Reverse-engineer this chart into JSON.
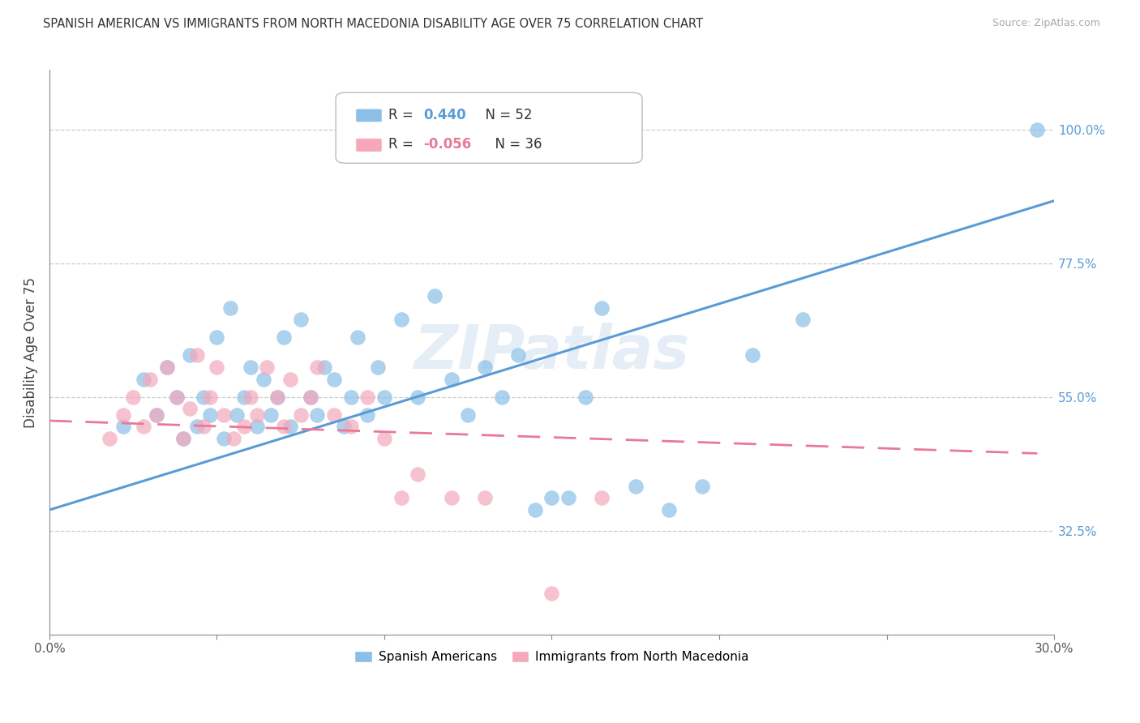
{
  "title": "SPANISH AMERICAN VS IMMIGRANTS FROM NORTH MACEDONIA DISABILITY AGE OVER 75 CORRELATION CHART",
  "source": "Source: ZipAtlas.com",
  "ylabel": "Disability Age Over 75",
  "right_yticks": [
    "100.0%",
    "77.5%",
    "55.0%",
    "32.5%"
  ],
  "right_ytick_vals": [
    1.0,
    0.775,
    0.55,
    0.325
  ],
  "xmin": 0.0,
  "xmax": 0.3,
  "ymin": 0.15,
  "ymax": 1.1,
  "blue_color": "#8BBFE8",
  "pink_color": "#F5A8BC",
  "blue_line_color": "#5B9BD5",
  "pink_line_color": "#E87A96",
  "watermark": "ZIPatlas",
  "legend_r1_label": "R = ",
  "legend_r1_val": "0.440",
  "legend_r1_n": "N = 52",
  "legend_r2_label": "R = ",
  "legend_r2_val": "-0.056",
  "legend_r2_n": "N = 36",
  "blue_scatter_x": [
    0.022,
    0.028,
    0.032,
    0.035,
    0.038,
    0.04,
    0.042,
    0.044,
    0.046,
    0.048,
    0.05,
    0.052,
    0.054,
    0.056,
    0.058,
    0.06,
    0.062,
    0.064,
    0.066,
    0.068,
    0.07,
    0.072,
    0.075,
    0.078,
    0.08,
    0.082,
    0.085,
    0.088,
    0.09,
    0.092,
    0.095,
    0.098,
    0.1,
    0.105,
    0.11,
    0.115,
    0.12,
    0.125,
    0.13,
    0.135,
    0.14,
    0.145,
    0.15,
    0.155,
    0.16,
    0.165,
    0.175,
    0.185,
    0.195,
    0.21,
    0.225,
    0.295
  ],
  "blue_scatter_y": [
    0.5,
    0.58,
    0.52,
    0.6,
    0.55,
    0.48,
    0.62,
    0.5,
    0.55,
    0.52,
    0.65,
    0.48,
    0.7,
    0.52,
    0.55,
    0.6,
    0.5,
    0.58,
    0.52,
    0.55,
    0.65,
    0.5,
    0.68,
    0.55,
    0.52,
    0.6,
    0.58,
    0.5,
    0.55,
    0.65,
    0.52,
    0.6,
    0.55,
    0.68,
    0.55,
    0.72,
    0.58,
    0.52,
    0.6,
    0.55,
    0.62,
    0.36,
    0.38,
    0.38,
    0.55,
    0.7,
    0.4,
    0.36,
    0.4,
    0.62,
    0.68,
    1.0
  ],
  "pink_scatter_x": [
    0.018,
    0.022,
    0.025,
    0.028,
    0.03,
    0.032,
    0.035,
    0.038,
    0.04,
    0.042,
    0.044,
    0.046,
    0.048,
    0.05,
    0.052,
    0.055,
    0.058,
    0.06,
    0.062,
    0.065,
    0.068,
    0.07,
    0.072,
    0.075,
    0.078,
    0.08,
    0.085,
    0.09,
    0.095,
    0.1,
    0.105,
    0.11,
    0.12,
    0.13,
    0.15,
    0.165
  ],
  "pink_scatter_y": [
    0.48,
    0.52,
    0.55,
    0.5,
    0.58,
    0.52,
    0.6,
    0.55,
    0.48,
    0.53,
    0.62,
    0.5,
    0.55,
    0.6,
    0.52,
    0.48,
    0.5,
    0.55,
    0.52,
    0.6,
    0.55,
    0.5,
    0.58,
    0.52,
    0.55,
    0.6,
    0.52,
    0.5,
    0.55,
    0.48,
    0.38,
    0.42,
    0.38,
    0.38,
    0.22,
    0.38
  ],
  "blue_line_x": [
    0.0,
    0.3
  ],
  "blue_line_y": [
    0.36,
    0.88
  ],
  "pink_line_x": [
    0.0,
    0.295
  ],
  "pink_line_y": [
    0.51,
    0.455
  ]
}
